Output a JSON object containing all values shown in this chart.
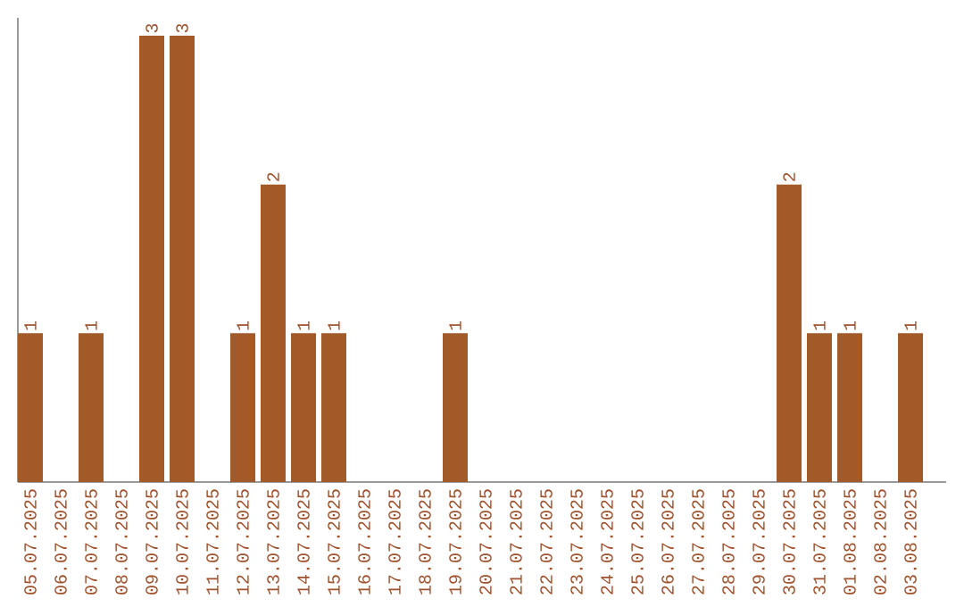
{
  "chart_data": {
    "type": "bar",
    "categories": [
      "05.07.2025",
      "06.07.2025",
      "07.07.2025",
      "08.07.2025",
      "09.07.2025",
      "10.07.2025",
      "11.07.2025",
      "12.07.2025",
      "13.07.2025",
      "14.07.2025",
      "15.07.2025",
      "16.07.2025",
      "17.07.2025",
      "18.07.2025",
      "19.07.2025",
      "20.07.2025",
      "21.07.2025",
      "22.07.2025",
      "23.07.2025",
      "24.07.2025",
      "25.07.2025",
      "26.07.2025",
      "27.07.2025",
      "28.07.2025",
      "29.07.2025",
      "30.07.2025",
      "31.07.2025",
      "01.08.2025",
      "02.08.2025",
      "03.08.2025"
    ],
    "values": [
      1,
      0,
      1,
      0,
      3,
      3,
      0,
      1,
      2,
      1,
      1,
      0,
      0,
      0,
      1,
      0,
      0,
      0,
      0,
      0,
      0,
      0,
      0,
      0,
      0,
      2,
      1,
      1,
      0,
      1
    ],
    "value_labels": [
      "1",
      null,
      "1",
      null,
      "3",
      "3",
      null,
      "1",
      "2",
      "1",
      "1",
      null,
      null,
      null,
      "1",
      null,
      null,
      null,
      null,
      null,
      null,
      null,
      null,
      null,
      null,
      "2",
      "1",
      "1",
      null,
      "1"
    ],
    "color": "#a15a28",
    "ylim": [
      0,
      3.12
    ],
    "tick_labels": "x"
  }
}
